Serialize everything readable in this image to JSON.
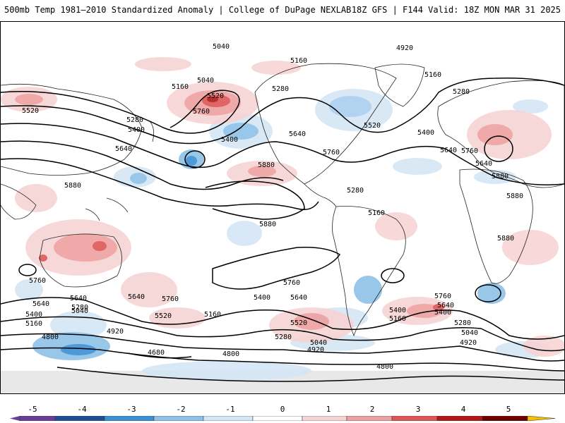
{
  "header": {
    "title_left": "500mb Temp 1981–2010 Standardized Anomaly | College of DuPage NEXLAB",
    "title_right": "18Z GFS | F144 Valid: 18Z MON MAR 31 2025"
  },
  "colors": {
    "neg5": "#6a3d9a",
    "neg4": "#1f4e99",
    "neg3": "#3b8fd4",
    "neg2": "#8fc1e8",
    "neg1": "#d4e6f5",
    "zero": "#ffffff",
    "pos1": "#f7d4d4",
    "pos2": "#eea0a0",
    "pos3": "#dd5555",
    "pos4": "#b01818",
    "pos5": "#6e0000",
    "over": "#f2c200"
  },
  "colorbar": {
    "ticks": [
      "-5",
      "-4",
      "-3",
      "-2",
      "-1",
      "0",
      "1",
      "2",
      "3",
      "4",
      "5"
    ]
  },
  "contour_labels": [
    "5160",
    "5040",
    "5520",
    "5160",
    "5280",
    "5160",
    "5280",
    "5760",
    "5520",
    "5280",
    "5400",
    "5640",
    "5400",
    "5640",
    "5520",
    "5400",
    "5640",
    "5760",
    "5640",
    "5760",
    "5880",
    "5880",
    "5880",
    "5880",
    "5880",
    "5880",
    "5760",
    "5760",
    "5640",
    "5760",
    "5640",
    "5400",
    "5640",
    "5520",
    "5160",
    "5400",
    "5160",
    "5640",
    "5280",
    "5040",
    "4920",
    "4800",
    "4680",
    "4800",
    "5040",
    "4920",
    "5280",
    "5520",
    "5640",
    "5400",
    "5160",
    "5280",
    "5040",
    "4920",
    "4800",
    "5760",
    "5400",
    "5160",
    "5280",
    "5040",
    "4920"
  ]
}
